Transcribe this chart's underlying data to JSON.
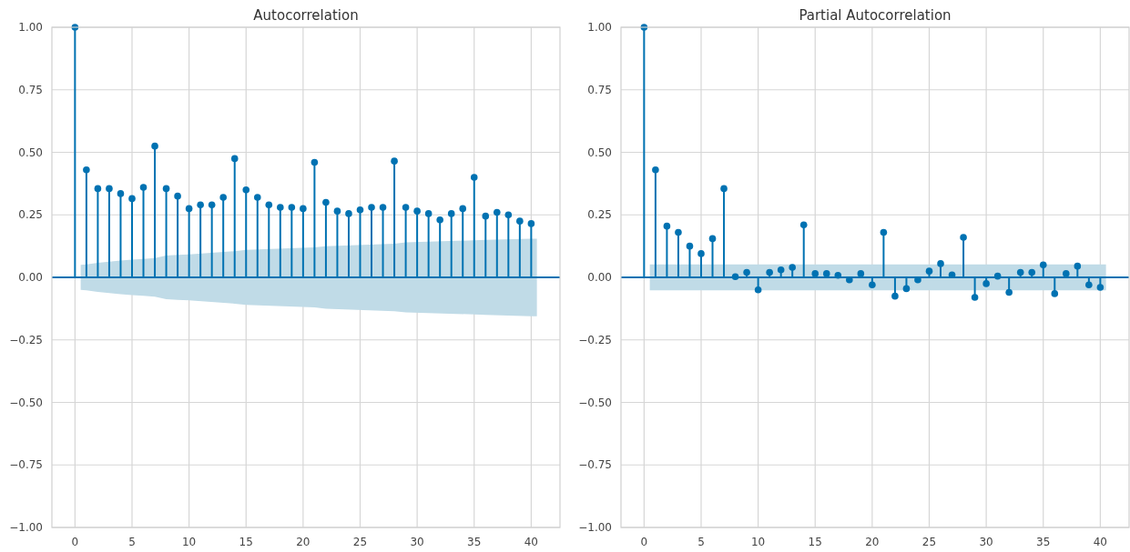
{
  "chart_data": [
    {
      "type": "lollipop",
      "title": "Autocorrelation",
      "x": [
        0,
        1,
        2,
        3,
        4,
        5,
        6,
        7,
        8,
        9,
        10,
        11,
        12,
        13,
        14,
        15,
        16,
        17,
        18,
        19,
        20,
        21,
        22,
        23,
        24,
        25,
        26,
        27,
        28,
        29,
        30,
        31,
        32,
        33,
        34,
        35,
        36,
        37,
        38,
        39,
        40
      ],
      "series": [
        {
          "color": "#0072b2",
          "marker": "circle",
          "values": [
            1,
            0.43,
            0.355,
            0.355,
            0.335,
            0.315,
            0.36,
            0.525,
            0.355,
            0.325,
            0.275,
            0.29,
            0.29,
            0.32,
            0.475,
            0.35,
            0.32,
            0.29,
            0.28,
            0.28,
            0.275,
            0.46,
            0.3,
            0.265,
            0.255,
            0.27,
            0.28,
            0.28,
            0.465,
            0.28,
            0.265,
            0.255,
            0.23,
            0.255,
            0.275,
            0.4,
            0.245,
            0.26,
            0.25,
            0.225,
            0.215
          ]
        },
        {
          "type": "area",
          "color": "#c0dbe7",
          "x": [
            0.5,
            1,
            2,
            3,
            4,
            5,
            6,
            7,
            8,
            9,
            10,
            14,
            15,
            21,
            22,
            28,
            29,
            35,
            36,
            40,
            40.5
          ],
          "values": [
            0.05,
            0.052,
            0.058,
            0.063,
            0.067,
            0.071,
            0.074,
            0.077,
            0.087,
            0.09,
            0.092,
            0.105,
            0.11,
            0.12,
            0.125,
            0.135,
            0.14,
            0.148,
            0.15,
            0.155,
            0.155
          ]
        },
        {
          "type": "area",
          "color": "#c0dbe7",
          "x": [
            0.5,
            1,
            2,
            3,
            4,
            5,
            6,
            7,
            8,
            9,
            10,
            14,
            15,
            21,
            22,
            28,
            29,
            35,
            36,
            40,
            40.5
          ],
          "values": [
            -0.05,
            -0.052,
            -0.058,
            -0.063,
            -0.067,
            -0.071,
            -0.074,
            -0.077,
            -0.087,
            -0.09,
            -0.092,
            -0.105,
            -0.11,
            -0.12,
            -0.125,
            -0.135,
            -0.14,
            -0.148,
            -0.15,
            -0.155,
            -0.155
          ]
        }
      ],
      "ref_lines": [
        {
          "axis": "y",
          "value": 0,
          "color": "#0072b2"
        }
      ],
      "xlim": [
        -2.025,
        42.525
      ],
      "xticks": [
        0,
        5,
        10,
        15,
        20,
        25,
        30,
        35,
        40
      ],
      "ylim": [
        -1,
        1
      ],
      "yticks": [
        {
          "value": -1,
          "label": "−1.00"
        },
        {
          "value": -0.75,
          "label": "−0.75"
        },
        {
          "value": -0.5,
          "label": "−0.50"
        },
        {
          "value": -0.25,
          "label": "−0.25"
        },
        {
          "value": 0,
          "label": "0.00"
        },
        {
          "value": 0.25,
          "label": "0.25"
        },
        {
          "value": 0.5,
          "label": "0.50"
        },
        {
          "value": 0.75,
          "label": "0.75"
        },
        {
          "value": 1,
          "label": "1.00"
        }
      ],
      "grid": true
    },
    {
      "type": "lollipop",
      "title": "Partial Autocorrelation",
      "x": [
        0,
        1,
        2,
        3,
        4,
        5,
        6,
        7,
        8,
        9,
        10,
        11,
        12,
        13,
        14,
        15,
        16,
        17,
        18,
        19,
        20,
        21,
        22,
        23,
        24,
        25,
        26,
        27,
        28,
        29,
        30,
        31,
        32,
        33,
        34,
        35,
        36,
        37,
        38,
        39,
        40
      ],
      "series": [
        {
          "color": "#0072b2",
          "marker": "circle",
          "values": [
            1,
            0.43,
            0.205,
            0.18,
            0.125,
            0.095,
            0.155,
            0.355,
            0.003,
            0.02,
            -0.05,
            0.02,
            0.03,
            0.04,
            0.21,
            0.015,
            0.015,
            0.008,
            -0.01,
            0.015,
            -0.03,
            0.18,
            -0.075,
            -0.045,
            -0.01,
            0.025,
            0.055,
            0.01,
            0.16,
            -0.08,
            -0.025,
            0.005,
            -0.06,
            0.02,
            0.02,
            0.05,
            -0.065,
            0.015,
            0.045,
            -0.03,
            -0.04
          ]
        },
        {
          "type": "area",
          "color": "#c0dbe7",
          "x": [
            0.5,
            40.5
          ],
          "values": [
            0.052,
            0.052
          ]
        },
        {
          "type": "area",
          "color": "#c0dbe7",
          "x": [
            0.5,
            40.5
          ],
          "values": [
            -0.052,
            -0.052
          ]
        }
      ],
      "ref_lines": [
        {
          "axis": "y",
          "value": 0,
          "color": "#0072b2"
        }
      ],
      "xlim": [
        -2.025,
        42.525
      ],
      "xticks": [
        0,
        5,
        10,
        15,
        20,
        25,
        30,
        35,
        40
      ],
      "ylim": [
        -1,
        1
      ],
      "yticks": [
        {
          "value": -1,
          "label": "−1.00"
        },
        {
          "value": -0.75,
          "label": "−0.75"
        },
        {
          "value": -0.5,
          "label": "−0.50"
        },
        {
          "value": -0.25,
          "label": "−0.25"
        },
        {
          "value": 0,
          "label": "0.00"
        },
        {
          "value": 0.25,
          "label": "0.25"
        },
        {
          "value": 0.5,
          "label": "0.50"
        },
        {
          "value": 0.75,
          "label": "0.75"
        },
        {
          "value": 1,
          "label": "1.00"
        }
      ],
      "grid": true
    }
  ]
}
